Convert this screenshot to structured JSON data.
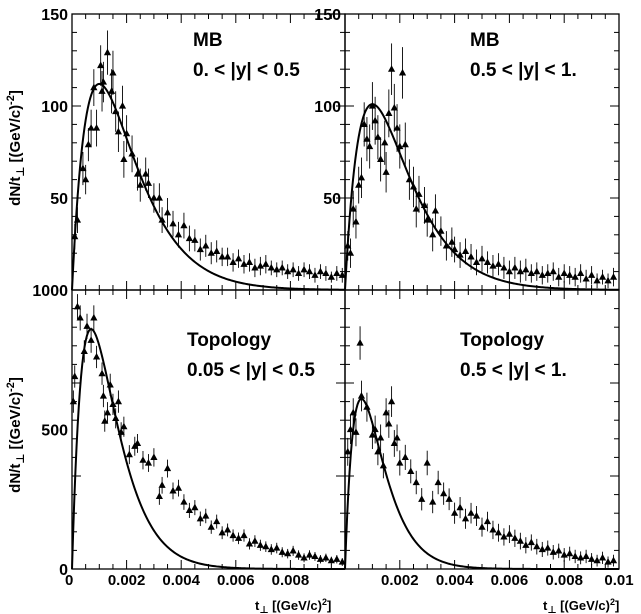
{
  "figure": {
    "ylabel": "dN/t",
    "ylabel_sub": "⊥",
    "ylabel_unit": " [(GeV/c)",
    "ylabel_sup": "-2",
    "ylabel_tail": "]",
    "xlabel": "t",
    "xlabel_sub": "⊥",
    "xlabel_unit": " [(GeV/c)",
    "xlabel_sup": "2",
    "xlabel_tail": "]"
  },
  "chart_data": [
    {
      "type": "scatter",
      "panel": "top-left",
      "labels": [
        "MB",
        "0. < |y| < 0.5"
      ],
      "xlim": [
        0,
        0.01
      ],
      "ylim": [
        0,
        150
      ],
      "yticks": [
        50,
        100,
        150
      ],
      "xticks": [],
      "data": [
        [
          0.0001,
          29,
          7
        ],
        [
          0.0002,
          38,
          7
        ],
        [
          0.0004,
          66,
          9
        ],
        [
          0.0005,
          60,
          8
        ],
        [
          0.0006,
          79,
          9
        ],
        [
          0.0007,
          88,
          10
        ],
        [
          0.0008,
          110,
          10
        ],
        [
          0.0009,
          88,
          10
        ],
        [
          0.00105,
          122,
          11
        ],
        [
          0.0011,
          108,
          11
        ],
        [
          0.00115,
          113,
          11
        ],
        [
          0.0013,
          129,
          12
        ],
        [
          0.00145,
          108,
          12
        ],
        [
          0.0015,
          118,
          12
        ],
        [
          0.0016,
          97,
          11
        ],
        [
          0.0017,
          86,
          11
        ],
        [
          0.00185,
          100,
          11
        ],
        [
          0.0019,
          71,
          10
        ],
        [
          0.002,
          85,
          10
        ],
        [
          0.0022,
          74,
          10
        ],
        [
          0.0024,
          63,
          9
        ],
        [
          0.0025,
          57,
          9
        ],
        [
          0.0027,
          63,
          9
        ],
        [
          0.0028,
          58,
          8
        ],
        [
          0.003,
          50,
          8
        ],
        [
          0.0032,
          50,
          8
        ],
        [
          0.0033,
          38,
          7
        ],
        [
          0.0035,
          42,
          8
        ],
        [
          0.0037,
          36,
          7
        ],
        [
          0.0039,
          30,
          7
        ],
        [
          0.0041,
          35,
          7
        ],
        [
          0.0043,
          28,
          7
        ],
        [
          0.0045,
          27,
          6
        ],
        [
          0.0047,
          22,
          6
        ],
        [
          0.0049,
          24,
          6
        ],
        [
          0.0051,
          20,
          6
        ],
        [
          0.0053,
          21,
          6
        ],
        [
          0.0055,
          18,
          5
        ],
        [
          0.0057,
          18,
          5
        ],
        [
          0.0059,
          15,
          5
        ],
        [
          0.0061,
          17,
          5
        ],
        [
          0.0063,
          14,
          5
        ],
        [
          0.0065,
          15,
          5
        ],
        [
          0.0067,
          12,
          5
        ],
        [
          0.0069,
          13,
          5
        ],
        [
          0.0071,
          14,
          5
        ],
        [
          0.0073,
          12,
          4
        ],
        [
          0.0075,
          11,
          4
        ],
        [
          0.0077,
          12,
          4
        ],
        [
          0.0079,
          10,
          4
        ],
        [
          0.0081,
          11,
          4
        ],
        [
          0.0083,
          9,
          4
        ],
        [
          0.0085,
          11,
          4
        ],
        [
          0.0087,
          10,
          4
        ],
        [
          0.0089,
          8,
          4
        ],
        [
          0.0091,
          10,
          4
        ],
        [
          0.0093,
          9,
          4
        ],
        [
          0.0095,
          7,
          3
        ],
        [
          0.0097,
          9,
          4
        ],
        [
          0.0099,
          8,
          4
        ]
      ],
      "fit": {
        "A": 112,
        "t0": 0.001
      }
    },
    {
      "type": "scatter",
      "panel": "top-right",
      "labels": [
        "MB",
        "0.5 < |y| < 1."
      ],
      "xlim": [
        0,
        0.01
      ],
      "ylim": [
        0,
        150
      ],
      "yticks": [
        50,
        100,
        150
      ],
      "xticks": [],
      "data": [
        [
          0.0001,
          24,
          8
        ],
        [
          0.0002,
          20,
          8
        ],
        [
          0.0003,
          44,
          10
        ],
        [
          0.0004,
          37,
          9
        ],
        [
          0.0005,
          57,
          10
        ],
        [
          0.0006,
          61,
          11
        ],
        [
          0.0007,
          90,
          12
        ],
        [
          0.0008,
          82,
          12
        ],
        [
          0.0009,
          78,
          12
        ],
        [
          0.001,
          100,
          13
        ],
        [
          0.0011,
          92,
          13
        ],
        [
          0.0012,
          83,
          12
        ],
        [
          0.0013,
          71,
          12
        ],
        [
          0.00145,
          80,
          12
        ],
        [
          0.0015,
          64,
          11
        ],
        [
          0.0016,
          96,
          13
        ],
        [
          0.0017,
          120,
          14
        ],
        [
          0.0018,
          99,
          13
        ],
        [
          0.0019,
          88,
          13
        ],
        [
          0.002,
          78,
          12
        ],
        [
          0.0021,
          118,
          14
        ],
        [
          0.0022,
          79,
          12
        ],
        [
          0.00235,
          60,
          11
        ],
        [
          0.0025,
          56,
          11
        ],
        [
          0.0026,
          44,
          10
        ],
        [
          0.0027,
          52,
          10
        ],
        [
          0.0029,
          46,
          10
        ],
        [
          0.003,
          38,
          9
        ],
        [
          0.0032,
          30,
          9
        ],
        [
          0.0033,
          43,
          9
        ],
        [
          0.0035,
          32,
          8
        ],
        [
          0.0037,
          24,
          8
        ],
        [
          0.0039,
          26,
          8
        ],
        [
          0.004,
          22,
          7
        ],
        [
          0.0042,
          19,
          7
        ],
        [
          0.0044,
          21,
          7
        ],
        [
          0.0046,
          18,
          7
        ],
        [
          0.0048,
          15,
          7
        ],
        [
          0.005,
          17,
          7
        ],
        [
          0.0052,
          15,
          6
        ],
        [
          0.0054,
          13,
          6
        ],
        [
          0.0056,
          14,
          6
        ],
        [
          0.0058,
          12,
          6
        ],
        [
          0.006,
          10,
          6
        ],
        [
          0.0062,
          12,
          6
        ],
        [
          0.0064,
          10,
          6
        ],
        [
          0.0066,
          11,
          6
        ],
        [
          0.0068,
          9,
          5
        ],
        [
          0.007,
          10,
          5
        ],
        [
          0.0072,
          8,
          5
        ],
        [
          0.0074,
          9,
          5
        ],
        [
          0.0076,
          10,
          5
        ],
        [
          0.0078,
          7,
          5
        ],
        [
          0.008,
          9,
          5
        ],
        [
          0.0082,
          8,
          5
        ],
        [
          0.0084,
          7,
          5
        ],
        [
          0.0086,
          9,
          5
        ],
        [
          0.0088,
          6,
          5
        ],
        [
          0.009,
          8,
          5
        ],
        [
          0.0092,
          5,
          4
        ],
        [
          0.0094,
          7,
          4
        ],
        [
          0.0096,
          5,
          4
        ],
        [
          0.0098,
          7,
          5
        ]
      ],
      "fit": {
        "A": 101,
        "t0": 0.001
      }
    },
    {
      "type": "scatter",
      "panel": "bottom-left",
      "labels": [
        "Topology",
        "0.05 < |y| < 0.5"
      ],
      "xlim": [
        0,
        0.01
      ],
      "ylim": [
        0,
        1000
      ],
      "yticks": [
        0,
        500,
        1000
      ],
      "xticks": [
        0,
        0.002,
        0.004,
        0.006,
        0.008
      ],
      "xtick_labels": [
        "0",
        "0.002",
        "0.004",
        "0.006",
        "0.008"
      ],
      "data": [
        [
          5e-05,
          600,
          40
        ],
        [
          0.0001,
          690,
          40
        ],
        [
          0.0002,
          940,
          45
        ],
        [
          0.0003,
          900,
          45
        ],
        [
          0.00045,
          780,
          40
        ],
        [
          0.00055,
          870,
          45
        ],
        [
          0.0007,
          820,
          45
        ],
        [
          0.0008,
          900,
          45
        ],
        [
          0.0009,
          760,
          40
        ],
        [
          0.0011,
          700,
          40
        ],
        [
          0.00115,
          620,
          40
        ],
        [
          0.0012,
          530,
          38
        ],
        [
          0.0013,
          560,
          38
        ],
        [
          0.0014,
          660,
          40
        ],
        [
          0.0015,
          590,
          38
        ],
        [
          0.0016,
          540,
          36
        ],
        [
          0.0017,
          600,
          40
        ],
        [
          0.0018,
          490,
          36
        ],
        [
          0.0019,
          510,
          36
        ],
        [
          0.0021,
          410,
          34
        ],
        [
          0.0023,
          440,
          34
        ],
        [
          0.0024,
          450,
          34
        ],
        [
          0.0026,
          390,
          33
        ],
        [
          0.0028,
          380,
          32
        ],
        [
          0.003,
          400,
          33
        ],
        [
          0.0032,
          260,
          30
        ],
        [
          0.0033,
          300,
          30
        ],
        [
          0.0035,
          360,
          32
        ],
        [
          0.0037,
          280,
          30
        ],
        [
          0.0039,
          290,
          30
        ],
        [
          0.0041,
          240,
          28
        ],
        [
          0.0043,
          210,
          27
        ],
        [
          0.0045,
          220,
          27
        ],
        [
          0.0047,
          180,
          26
        ],
        [
          0.0049,
          190,
          26
        ],
        [
          0.0051,
          150,
          24
        ],
        [
          0.0053,
          170,
          25
        ],
        [
          0.0055,
          130,
          23
        ],
        [
          0.0057,
          140,
          23
        ],
        [
          0.0059,
          120,
          22
        ],
        [
          0.0061,
          110,
          21
        ],
        [
          0.0063,
          120,
          22
        ],
        [
          0.0065,
          90,
          20
        ],
        [
          0.0067,
          100,
          21
        ],
        [
          0.0069,
          85,
          20
        ],
        [
          0.0071,
          80,
          19
        ],
        [
          0.0073,
          70,
          19
        ],
        [
          0.0075,
          75,
          19
        ],
        [
          0.0077,
          60,
          18
        ],
        [
          0.0079,
          55,
          17
        ],
        [
          0.0081,
          65,
          18
        ],
        [
          0.0083,
          50,
          17
        ],
        [
          0.0085,
          40,
          16
        ],
        [
          0.0087,
          50,
          17
        ],
        [
          0.0089,
          45,
          16
        ],
        [
          0.0091,
          35,
          15
        ],
        [
          0.0093,
          40,
          15
        ],
        [
          0.0095,
          30,
          14
        ],
        [
          0.0097,
          35,
          15
        ],
        [
          0.0099,
          25,
          14
        ]
      ],
      "fit": {
        "A": 860,
        "t0": 0.0007
      }
    },
    {
      "type": "scatter",
      "panel": "bottom-right",
      "labels": [
        "Topology",
        "0.5 < |y| < 1."
      ],
      "xlim": [
        0,
        0.01
      ],
      "ylim": [
        0,
        1000
      ],
      "yticks": [],
      "xticks": [
        0.002,
        0.004,
        0.006,
        0.008,
        0.01
      ],
      "xtick_labels": [
        "0.002",
        "0.004",
        "0.006",
        "0.008",
        "0.01"
      ],
      "data": [
        [
          0.0001,
          420,
          50
        ],
        [
          0.0002,
          500,
          52
        ],
        [
          0.0003,
          560,
          52
        ],
        [
          0.0004,
          490,
          50
        ],
        [
          0.00055,
          810,
          60
        ],
        [
          0.0006,
          620,
          55
        ],
        [
          0.0008,
          580,
          52
        ],
        [
          0.001,
          480,
          50
        ],
        [
          0.0011,
          500,
          50
        ],
        [
          0.0012,
          420,
          48
        ],
        [
          0.0013,
          470,
          48
        ],
        [
          0.0014,
          370,
          45
        ],
        [
          0.0015,
          560,
          52
        ],
        [
          0.0016,
          520,
          50
        ],
        [
          0.0017,
          600,
          55
        ],
        [
          0.0018,
          450,
          48
        ],
        [
          0.0019,
          470,
          48
        ],
        [
          0.002,
          380,
          45
        ],
        [
          0.0022,
          400,
          45
        ],
        [
          0.0024,
          350,
          43
        ],
        [
          0.0026,
          310,
          42
        ],
        [
          0.0028,
          250,
          40
        ],
        [
          0.003,
          380,
          44
        ],
        [
          0.0032,
          240,
          40
        ],
        [
          0.0034,
          310,
          42
        ],
        [
          0.0036,
          270,
          40
        ],
        [
          0.0038,
          250,
          39
        ],
        [
          0.004,
          200,
          38
        ],
        [
          0.0042,
          220,
          38
        ],
        [
          0.0044,
          180,
          36
        ],
        [
          0.0046,
          200,
          37
        ],
        [
          0.0048,
          190,
          36
        ],
        [
          0.005,
          150,
          34
        ],
        [
          0.0052,
          170,
          35
        ],
        [
          0.0054,
          140,
          33
        ],
        [
          0.0056,
          130,
          32
        ],
        [
          0.0058,
          115,
          31
        ],
        [
          0.006,
          125,
          32
        ],
        [
          0.0062,
          110,
          31
        ],
        [
          0.0064,
          100,
          30
        ],
        [
          0.0066,
          85,
          29
        ],
        [
          0.0068,
          95,
          29
        ],
        [
          0.007,
          80,
          28
        ],
        [
          0.0072,
          70,
          27
        ],
        [
          0.0074,
          75,
          27
        ],
        [
          0.0076,
          60,
          26
        ],
        [
          0.0078,
          65,
          26
        ],
        [
          0.008,
          50,
          25
        ],
        [
          0.0082,
          55,
          25
        ],
        [
          0.0084,
          45,
          24
        ],
        [
          0.0086,
          40,
          23
        ],
        [
          0.0088,
          45,
          24
        ],
        [
          0.009,
          35,
          22
        ],
        [
          0.0092,
          30,
          21
        ],
        [
          0.0094,
          40,
          22
        ],
        [
          0.0096,
          25,
          20
        ],
        [
          0.0098,
          30,
          21
        ]
      ],
      "fit": {
        "A": 610,
        "t0": 0.0006
      }
    }
  ]
}
